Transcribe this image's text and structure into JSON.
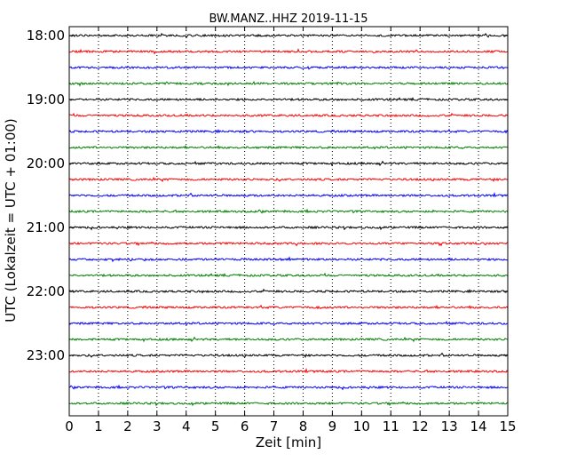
{
  "chart_data": {
    "type": "line",
    "title": "BW.MANZ..HHZ 2019-11-15",
    "xlabel": "Zeit  [min]",
    "ylabel": "UTC (Lokalzeit = UTC + 01:00)",
    "xlim": [
      0,
      15
    ],
    "x_ticks": [
      "0",
      "1",
      "2",
      "3",
      "4",
      "5",
      "6",
      "7",
      "8",
      "9",
      "10",
      "11",
      "12",
      "13",
      "14",
      "15"
    ],
    "y_tick_labels": [
      "18:00",
      "19:00",
      "20:00",
      "21:00",
      "22:00",
      "23:00"
    ],
    "traces_start": "18:00",
    "trace_interval_minutes": 15,
    "trace_count": 24,
    "trace_colors": [
      "#000000",
      "#ff0000",
      "#0000ff",
      "#008000"
    ],
    "grid": {
      "x": "dotted",
      "y": false
    }
  }
}
